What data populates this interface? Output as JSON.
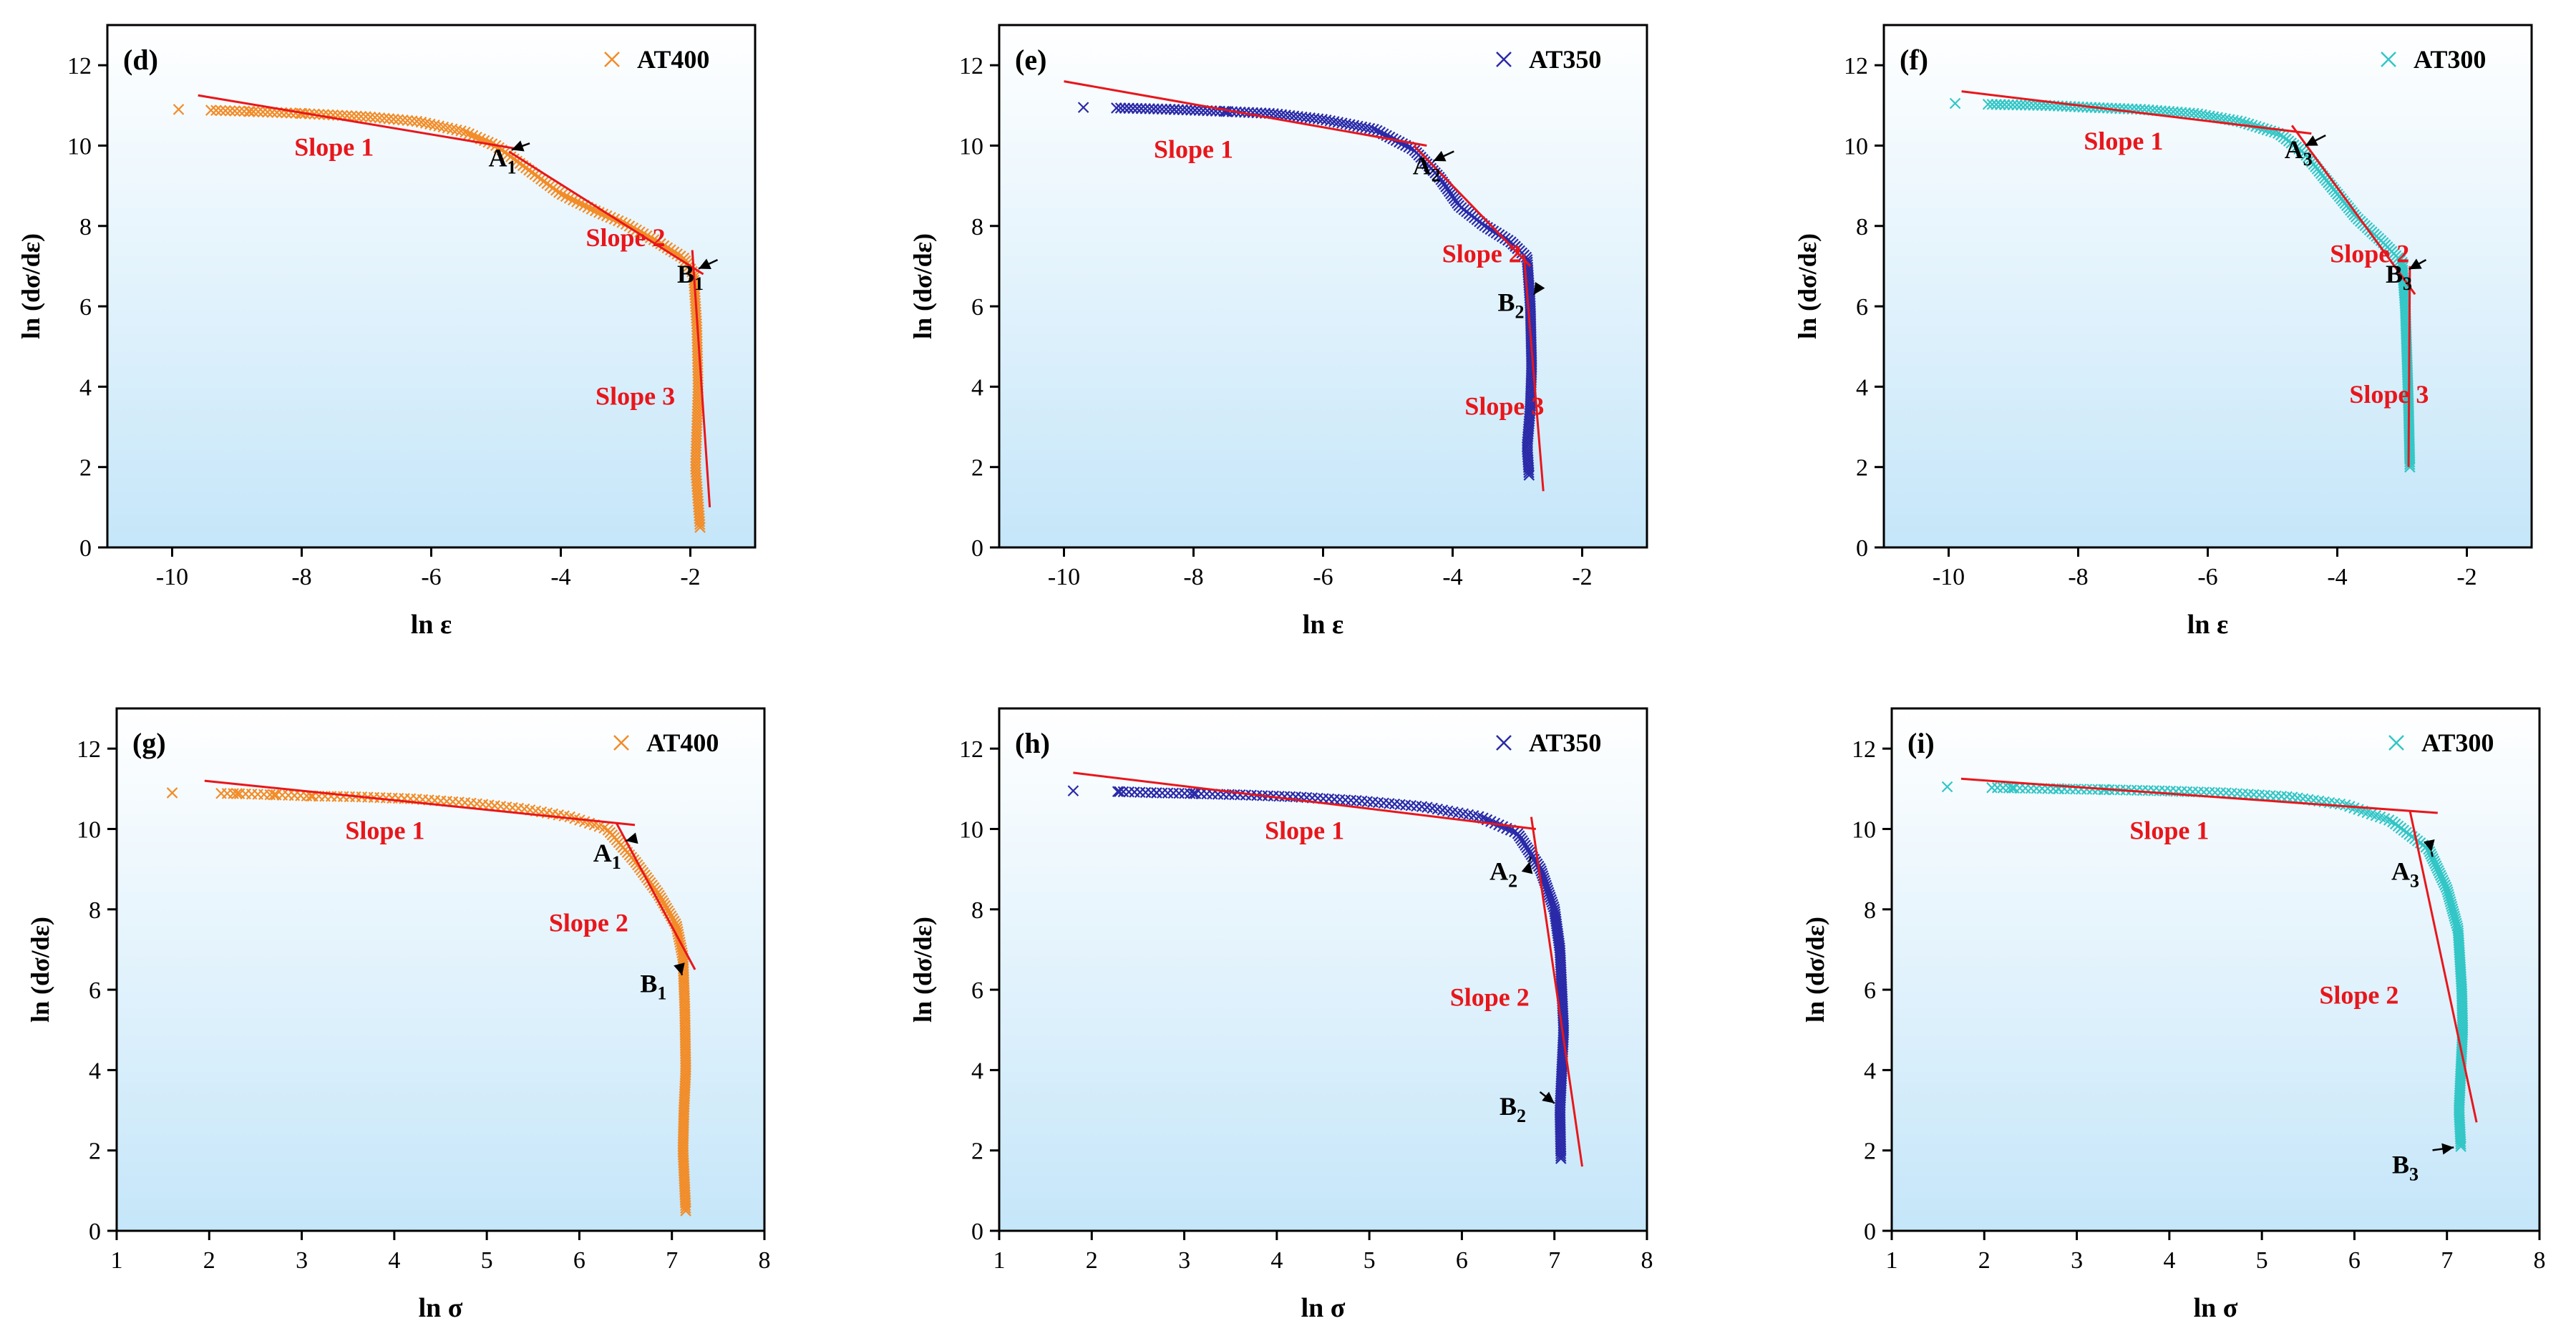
{
  "figure": {
    "layout": "2 rows x 3 columns"
  },
  "chart_data": [
    {
      "panel": "(d)",
      "type": "scatter",
      "series_label": "AT400",
      "marker_color": "#f28c28",
      "xlabel": "ln  ε",
      "ylabel": "ln (dσ/dε)",
      "xlim": [
        -11,
        -1
      ],
      "ylim": [
        0,
        13
      ],
      "xticks": [
        -10,
        -8,
        -6,
        -4,
        -2
      ],
      "yticks": [
        0,
        2,
        4,
        6,
        8,
        10,
        12
      ],
      "curve": [
        [
          -9.9,
          10.9
        ],
        [
          -9.4,
          10.88
        ],
        [
          -8.8,
          10.85
        ],
        [
          -8.0,
          10.8
        ],
        [
          -7.0,
          10.72
        ],
        [
          -6.2,
          10.6
        ],
        [
          -5.5,
          10.35
        ],
        [
          -5.0,
          10.0
        ],
        [
          -4.5,
          9.4
        ],
        [
          -4.0,
          8.8
        ],
        [
          -3.5,
          8.4
        ],
        [
          -3.0,
          8.05
        ],
        [
          -2.5,
          7.6
        ],
        [
          -2.1,
          7.2
        ],
        [
          -1.95,
          6.8
        ],
        [
          -1.9,
          5.5
        ],
        [
          -1.88,
          4.0
        ],
        [
          -1.9,
          3.0
        ],
        [
          -1.92,
          2.0
        ],
        [
          -1.85,
          0.5
        ]
      ],
      "fit_lines": [
        [
          [
            -9.6,
            11.25
          ],
          [
            -4.6,
            9.9
          ]
        ],
        [
          [
            -4.8,
            9.85
          ],
          [
            -1.8,
            6.8
          ]
        ],
        [
          [
            -1.97,
            7.4
          ],
          [
            -1.7,
            1.0
          ]
        ]
      ],
      "annotations": [
        {
          "text": "Slope 1",
          "x": -7.5,
          "y": 9.75,
          "color": "red"
        },
        {
          "text": "Slope 2",
          "x": -3.0,
          "y": 7.5,
          "color": "red"
        },
        {
          "text": "Slope 3",
          "x": -2.85,
          "y": 3.55,
          "color": "red"
        }
      ],
      "points": [
        {
          "label": "A",
          "sub": "1",
          "x": -4.9,
          "y": 9.7
        },
        {
          "label": "B",
          "sub": "1",
          "x": -2.0,
          "y": 6.8
        }
      ]
    },
    {
      "panel": "(e)",
      "type": "scatter",
      "series_label": "AT350",
      "marker_color": "#2a2aa8",
      "xlabel": "ln  ε",
      "ylabel": "ln (dσ/dε)",
      "xlim": [
        -11,
        -1
      ],
      "ylim": [
        0,
        13
      ],
      "xticks": [
        -10,
        -8,
        -6,
        -4,
        -2
      ],
      "yticks": [
        0,
        2,
        4,
        6,
        8,
        10,
        12
      ],
      "curve": [
        [
          -9.7,
          10.95
        ],
        [
          -9.0,
          10.93
        ],
        [
          -8.3,
          10.9
        ],
        [
          -7.5,
          10.85
        ],
        [
          -6.8,
          10.8
        ],
        [
          -6.0,
          10.65
        ],
        [
          -5.2,
          10.4
        ],
        [
          -4.6,
          9.9
        ],
        [
          -4.2,
          9.2
        ],
        [
          -3.9,
          8.5
        ],
        [
          -3.5,
          8.0
        ],
        [
          -3.1,
          7.6
        ],
        [
          -2.85,
          7.2
        ],
        [
          -2.8,
          6.0
        ],
        [
          -2.78,
          4.5
        ],
        [
          -2.8,
          3.5
        ],
        [
          -2.85,
          2.5
        ],
        [
          -2.82,
          1.8
        ]
      ],
      "fit_lines": [
        [
          [
            -10.0,
            11.6
          ],
          [
            -4.4,
            10.0
          ]
        ],
        [
          [
            -4.6,
            10.0
          ],
          [
            -2.8,
            7.0
          ]
        ],
        [
          [
            -2.9,
            7.3
          ],
          [
            -2.6,
            1.4
          ]
        ]
      ],
      "annotations": [
        {
          "text": "Slope 1",
          "x": -8.0,
          "y": 9.7,
          "color": "red"
        },
        {
          "text": "Slope 2",
          "x": -3.55,
          "y": 7.1,
          "color": "red"
        },
        {
          "text": "Slope 3",
          "x": -3.2,
          "y": 3.3,
          "color": "red"
        }
      ],
      "points": [
        {
          "label": "A",
          "sub": "2",
          "x": -4.4,
          "y": 9.5
        },
        {
          "label": "B",
          "sub": "2",
          "x": -3.1,
          "y": 6.1
        }
      ]
    },
    {
      "panel": "(f)",
      "type": "scatter",
      "series_label": "AT300",
      "marker_color": "#33c6c6",
      "xlabel": "ln  ε",
      "ylabel": "ln (dσ/dε)",
      "xlim": [
        -11,
        -1
      ],
      "ylim": [
        0,
        13
      ],
      "xticks": [
        -10,
        -8,
        -6,
        -4,
        -2
      ],
      "yticks": [
        0,
        2,
        4,
        6,
        8,
        10,
        12
      ],
      "curve": [
        [
          -9.9,
          11.05
        ],
        [
          -9.2,
          11.02
        ],
        [
          -8.5,
          11.0
        ],
        [
          -7.8,
          10.95
        ],
        [
          -7.0,
          10.9
        ],
        [
          -6.2,
          10.8
        ],
        [
          -5.5,
          10.6
        ],
        [
          -4.9,
          10.3
        ],
        [
          -4.5,
          9.8
        ],
        [
          -4.1,
          9.0
        ],
        [
          -3.7,
          8.2
        ],
        [
          -3.3,
          7.6
        ],
        [
          -3.0,
          7.1
        ],
        [
          -2.95,
          6.0
        ],
        [
          -2.92,
          4.5
        ],
        [
          -2.9,
          3.5
        ],
        [
          -2.88,
          2.0
        ]
      ],
      "fit_lines": [
        [
          [
            -9.8,
            11.35
          ],
          [
            -4.4,
            10.3
          ]
        ],
        [
          [
            -4.7,
            10.5
          ],
          [
            -2.8,
            6.3
          ]
        ],
        [
          [
            -2.88,
            7.0
          ],
          [
            -2.9,
            2.0
          ]
        ]
      ],
      "annotations": [
        {
          "text": "Slope 1",
          "x": -7.3,
          "y": 9.9,
          "color": "red"
        },
        {
          "text": "Slope 2",
          "x": -3.5,
          "y": 7.1,
          "color": "red"
        },
        {
          "text": "Slope 3",
          "x": -3.2,
          "y": 3.6,
          "color": "red"
        }
      ],
      "points": [
        {
          "label": "A",
          "sub": "3",
          "x": -4.6,
          "y": 9.9
        },
        {
          "label": "B",
          "sub": "3",
          "x": -3.05,
          "y": 6.8
        }
      ]
    },
    {
      "panel": "(g)",
      "type": "scatter",
      "series_label": "AT400",
      "marker_color": "#f28c28",
      "xlabel": "ln  σ",
      "ylabel": "ln (dσ/dε)",
      "xlim": [
        1,
        8
      ],
      "ylim": [
        0,
        13
      ],
      "xticks": [
        1,
        2,
        3,
        4,
        5,
        6,
        7,
        8
      ],
      "yticks": [
        0,
        2,
        4,
        6,
        8,
        10,
        12
      ],
      "curve": [
        [
          1.6,
          10.9
        ],
        [
          2.3,
          10.88
        ],
        [
          2.7,
          10.85
        ],
        [
          3.1,
          10.82
        ],
        [
          3.6,
          10.8
        ],
        [
          4.2,
          10.75
        ],
        [
          4.8,
          10.65
        ],
        [
          5.4,
          10.5
        ],
        [
          5.9,
          10.3
        ],
        [
          6.3,
          10.0
        ],
        [
          6.6,
          9.2
        ],
        [
          6.85,
          8.4
        ],
        [
          7.05,
          7.6
        ],
        [
          7.12,
          6.8
        ],
        [
          7.14,
          5.5
        ],
        [
          7.15,
          4.0
        ],
        [
          7.13,
          3.0
        ],
        [
          7.12,
          2.0
        ],
        [
          7.15,
          0.5
        ]
      ],
      "fit_lines": [
        [
          [
            1.95,
            11.2
          ],
          [
            6.6,
            10.1
          ]
        ],
        [
          [
            6.4,
            10.15
          ],
          [
            7.25,
            6.5
          ]
        ]
      ],
      "annotations": [
        {
          "text": "Slope 1",
          "x": 3.9,
          "y": 9.75,
          "color": "red"
        },
        {
          "text": "Slope 2",
          "x": 6.1,
          "y": 7.45,
          "color": "red"
        }
      ],
      "points": [
        {
          "label": "A",
          "sub": "1",
          "x": 6.3,
          "y": 9.4
        },
        {
          "label": "B",
          "sub": "1",
          "x": 6.8,
          "y": 6.15
        }
      ]
    },
    {
      "panel": "(h)",
      "type": "scatter",
      "series_label": "AT350",
      "marker_color": "#2a2aa8",
      "xlabel": "ln  σ",
      "ylabel": "ln (dσ/dε)",
      "xlim": [
        1,
        8
      ],
      "ylim": [
        0,
        13
      ],
      "xticks": [
        1,
        2,
        3,
        4,
        5,
        6,
        7,
        8
      ],
      "yticks": [
        0,
        2,
        4,
        6,
        8,
        10,
        12
      ],
      "curve": [
        [
          1.8,
          10.95
        ],
        [
          2.3,
          10.93
        ],
        [
          2.7,
          10.9
        ],
        [
          3.1,
          10.88
        ],
        [
          3.6,
          10.85
        ],
        [
          4.2,
          10.8
        ],
        [
          4.9,
          10.7
        ],
        [
          5.6,
          10.55
        ],
        [
          6.2,
          10.3
        ],
        [
          6.6,
          9.9
        ],
        [
          6.85,
          9.0
        ],
        [
          7.0,
          8.0
        ],
        [
          7.06,
          7.0
        ],
        [
          7.08,
          6.0
        ],
        [
          7.1,
          5.0
        ],
        [
          7.08,
          4.0
        ],
        [
          7.06,
          3.0
        ],
        [
          7.07,
          1.8
        ]
      ],
      "fit_lines": [
        [
          [
            1.8,
            11.4
          ],
          [
            6.8,
            10.0
          ]
        ],
        [
          [
            6.75,
            10.3
          ],
          [
            7.3,
            1.6
          ]
        ]
      ],
      "annotations": [
        {
          "text": "Slope 1",
          "x": 4.3,
          "y": 9.75,
          "color": "red"
        },
        {
          "text": "Slope 2",
          "x": 6.3,
          "y": 5.6,
          "color": "red"
        }
      ],
      "points": [
        {
          "label": "A",
          "sub": "2",
          "x": 6.45,
          "y": 8.95
        },
        {
          "label": "B",
          "sub": "2",
          "x": 6.55,
          "y": 3.1
        }
      ]
    },
    {
      "panel": "(i)",
      "type": "scatter",
      "series_label": "AT300",
      "marker_color": "#33c6c6",
      "xlabel": "ln  σ",
      "ylabel": "ln (dσ/dε)",
      "xlim": [
        1,
        8
      ],
      "ylim": [
        0,
        13
      ],
      "xticks": [
        1,
        2,
        3,
        4,
        5,
        6,
        7,
        8
      ],
      "yticks": [
        0,
        2,
        4,
        6,
        8,
        10,
        12
      ],
      "curve": [
        [
          1.6,
          11.05
        ],
        [
          2.3,
          11.02
        ],
        [
          2.8,
          11.0
        ],
        [
          3.3,
          10.98
        ],
        [
          3.9,
          10.95
        ],
        [
          4.6,
          10.9
        ],
        [
          5.3,
          10.8
        ],
        [
          5.9,
          10.6
        ],
        [
          6.4,
          10.2
        ],
        [
          6.8,
          9.5
        ],
        [
          7.0,
          8.5
        ],
        [
          7.12,
          7.5
        ],
        [
          7.16,
          6.0
        ],
        [
          7.17,
          5.0
        ],
        [
          7.15,
          4.0
        ],
        [
          7.13,
          3.0
        ],
        [
          7.15,
          2.1
        ]
      ],
      "fit_lines": [
        [
          [
            1.75,
            11.25
          ],
          [
            6.9,
            10.4
          ]
        ],
        [
          [
            6.6,
            10.45
          ],
          [
            7.32,
            2.7
          ]
        ]
      ],
      "annotations": [
        {
          "text": "Slope 1",
          "x": 4.0,
          "y": 9.75,
          "color": "red"
        },
        {
          "text": "Slope 2",
          "x": 6.05,
          "y": 5.65,
          "color": "red"
        }
      ],
      "points": [
        {
          "label": "A",
          "sub": "3",
          "x": 6.55,
          "y": 8.95
        },
        {
          "label": "B",
          "sub": "3",
          "x": 6.55,
          "y": 1.65
        }
      ]
    }
  ]
}
